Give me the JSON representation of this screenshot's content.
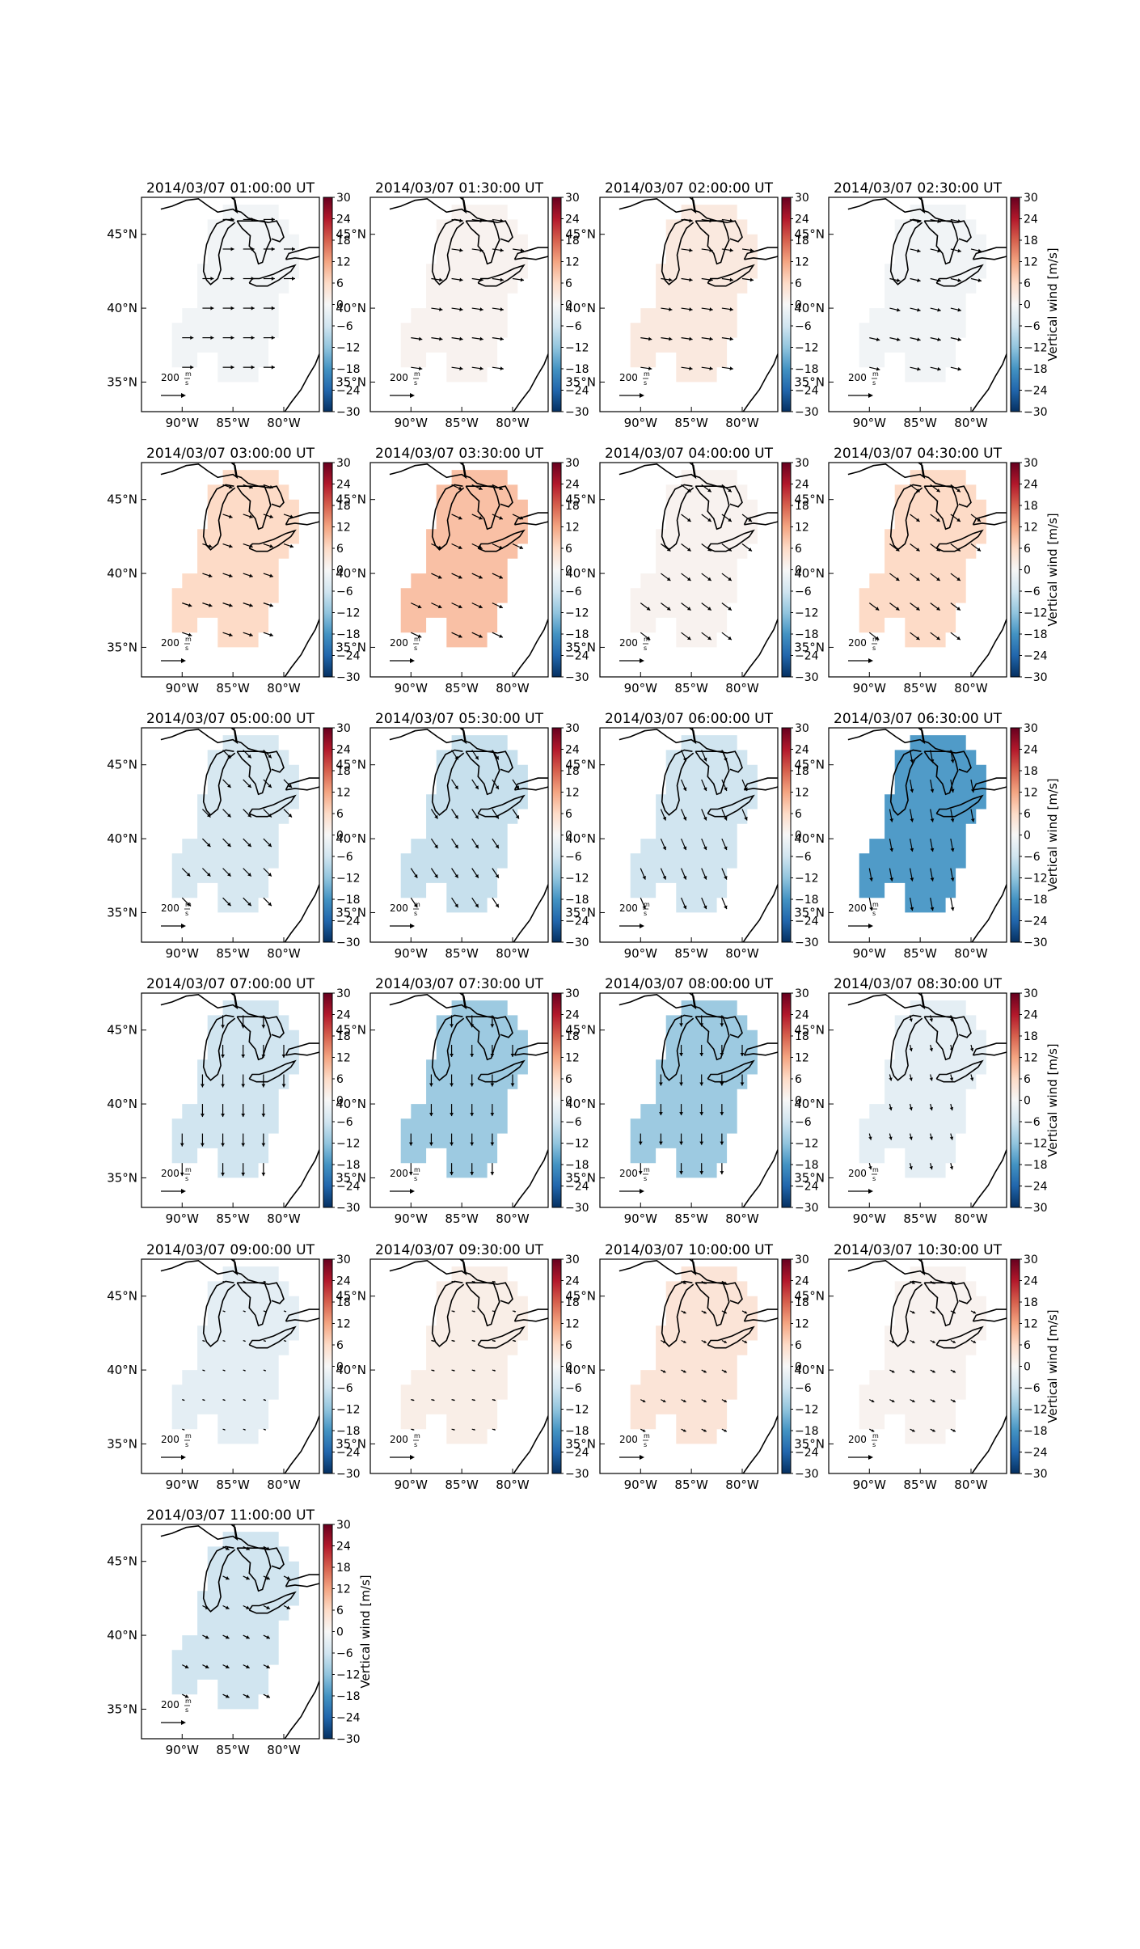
{
  "chart_data": {
    "type": "heatmap",
    "map": {
      "lon_ticks": [
        "90°W",
        "85°W",
        "80°W"
      ],
      "lat_ticks": [
        "45°N",
        "40°N",
        "35°N"
      ],
      "ref_vector": {
        "label": "200",
        "units_num": "m",
        "units_den": "s"
      }
    },
    "colorbar": {
      "label": "Vertical wind [m/s]",
      "range": [
        -30,
        30
      ],
      "ticks": [
        "30",
        "24",
        "18",
        "12",
        "6",
        "0",
        "−6",
        "−12",
        "−18",
        "−24",
        "−30"
      ],
      "colors": [
        "#053061",
        "#2166ac",
        "#4393c3",
        "#92c5de",
        "#d1e5f0",
        "#f7f7f7",
        "#fddbc7",
        "#f4a582",
        "#d6604d",
        "#b2182b",
        "#67001f"
      ]
    },
    "panels": [
      {
        "title": "2014/03/07 01:00:00 UT",
        "value": -1,
        "arrow": [
          14,
          0
        ]
      },
      {
        "title": "2014/03/07 01:30:00 UT",
        "value": 1,
        "arrow": [
          14,
          2
        ]
      },
      {
        "title": "2014/03/07 02:00:00 UT",
        "value": 3,
        "arrow": [
          14,
          2
        ]
      },
      {
        "title": "2014/03/07 02:30:00 UT",
        "value": -1,
        "arrow": [
          13,
          3
        ]
      },
      {
        "title": "2014/03/07 03:00:00 UT",
        "value": 6,
        "arrow": [
          12,
          4
        ]
      },
      {
        "title": "2014/03/07 03:30:00 UT",
        "value": 9,
        "arrow": [
          13,
          6
        ]
      },
      {
        "title": "2014/03/07 04:00:00 UT",
        "value": 1,
        "arrow": [
          12,
          9
        ]
      },
      {
        "title": "2014/03/07 04:30:00 UT",
        "value": 6,
        "arrow": [
          12,
          9
        ]
      },
      {
        "title": "2014/03/07 05:00:00 UT",
        "value": -5,
        "arrow": [
          10,
          10
        ]
      },
      {
        "title": "2014/03/07 05:30:00 UT",
        "value": -7,
        "arrow": [
          8,
          12
        ]
      },
      {
        "title": "2014/03/07 06:00:00 UT",
        "value": -6,
        "arrow": [
          6,
          14
        ]
      },
      {
        "title": "2014/03/07 06:30:00 UT",
        "value": -17,
        "arrow": [
          3,
          16
        ]
      },
      {
        "title": "2014/03/07 07:00:00 UT",
        "value": -6,
        "arrow": [
          0,
          16
        ]
      },
      {
        "title": "2014/03/07 07:30:00 UT",
        "value": -11,
        "arrow": [
          0,
          15
        ]
      },
      {
        "title": "2014/03/07 08:00:00 UT",
        "value": -11,
        "arrow": [
          0,
          14
        ]
      },
      {
        "title": "2014/03/07 08:30:00 UT",
        "value": -3,
        "arrow": [
          2,
          8
        ]
      },
      {
        "title": "2014/03/07 09:00:00 UT",
        "value": -3,
        "arrow": [
          3,
          1
        ]
      },
      {
        "title": "2014/03/07 09:30:00 UT",
        "value": 2,
        "arrow": [
          4,
          1
        ]
      },
      {
        "title": "2014/03/07 10:00:00 UT",
        "value": 4,
        "arrow": [
          6,
          3
        ]
      },
      {
        "title": "2014/03/07 10:30:00 UT",
        "value": 1,
        "arrow": [
          6,
          3
        ]
      },
      {
        "title": "2014/03/07 11:00:00 UT",
        "value": -6,
        "arrow": [
          8,
          4
        ]
      }
    ]
  }
}
